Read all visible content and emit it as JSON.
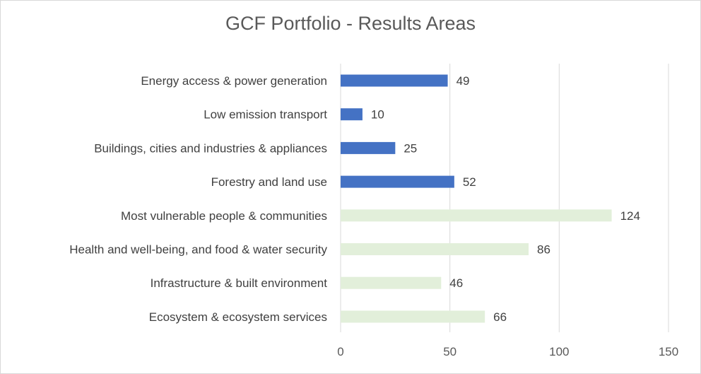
{
  "chart_data": {
    "type": "bar",
    "orientation": "horizontal",
    "title": "GCF Portfolio - Results Areas",
    "categories": [
      "Energy access & power generation",
      "Low emission transport",
      "Buildings, cities and industries & appliances",
      "Forestry and land use",
      "Most vulnerable people & communities",
      "Health and well-being, and food & water security",
      "Infrastructure & built environment",
      "Ecosystem & ecosystem services"
    ],
    "values": [
      49,
      10,
      25,
      52,
      124,
      86,
      46,
      66
    ],
    "xlim": [
      0,
      150
    ],
    "xticks": [
      "0",
      "50",
      "100",
      "150"
    ],
    "grid": "vertical",
    "legend": "none",
    "colors": {
      "mitigation": "#4472c4",
      "adaptation": "#e2efda",
      "grid": "#d9d9d9",
      "text": "#404040"
    }
  }
}
